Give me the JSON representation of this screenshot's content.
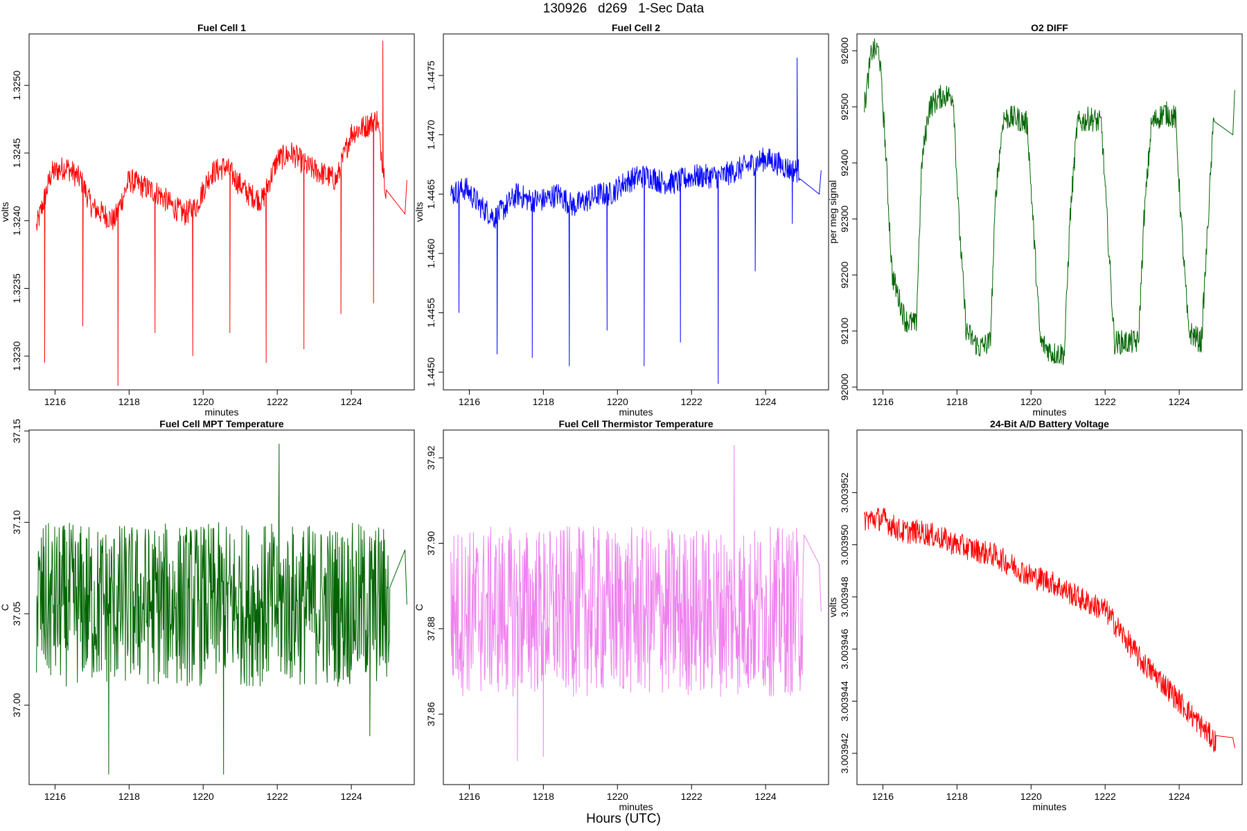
{
  "figure": {
    "title": "130926   d269   1-Sec Data",
    "footer": "Hours (UTC)"
  },
  "chart_data": [
    {
      "type": "line",
      "title": "Fuel Cell 1",
      "xlabel": "minutes",
      "ylabel": "volts",
      "color": "#ff0000",
      "xlim": [
        1215.3,
        1225.7
      ],
      "ylim": [
        1.32275,
        1.32538
      ],
      "x_ticks": [
        1216,
        1218,
        1220,
        1222,
        1224
      ],
      "y_ticks": [
        1.323,
        1.3235,
        1.324,
        1.3245,
        1.325
      ],
      "y_tick_labels": [
        "1.3230",
        "1.3235",
        "1.3240",
        "1.3245",
        "1.3250"
      ],
      "grid": false,
      "series": [
        {
          "x": [
            1215.5,
            1215.9,
            1216.3,
            1216.7,
            1217.0,
            1217.3,
            1217.6,
            1218.0,
            1218.4,
            1218.8,
            1219.2,
            1219.5,
            1219.8,
            1220.2,
            1220.6,
            1220.9,
            1221.2,
            1221.6,
            1222.0,
            1222.4,
            1222.8,
            1223.2,
            1223.6,
            1224.0,
            1224.4,
            1224.7,
            1224.95,
            1225.45,
            1225.5
          ],
          "y": [
            1.32395,
            1.32435,
            1.3244,
            1.3243,
            1.3241,
            1.32405,
            1.324,
            1.3243,
            1.32425,
            1.3242,
            1.3241,
            1.32405,
            1.3241,
            1.32435,
            1.3244,
            1.3243,
            1.3242,
            1.32415,
            1.32445,
            1.3245,
            1.3244,
            1.32435,
            1.3243,
            1.32465,
            1.3247,
            1.32475,
            1.3242,
            1.32405,
            1.3243
          ],
          "spikes": [
            [
              1215.72,
              1.32295
            ],
            [
              1216.75,
              1.32322
            ],
            [
              1217.7,
              1.32278
            ],
            [
              1218.7,
              1.32317
            ],
            [
              1219.72,
              1.323
            ],
            [
              1220.72,
              1.32317
            ],
            [
              1221.7,
              1.32295
            ],
            [
              1222.72,
              1.32305
            ],
            [
              1223.72,
              1.32331
            ],
            [
              1224.6,
              1.32339
            ]
          ],
          "peaks": [
            [
              1224.85,
              1.32533
            ]
          ]
        }
      ]
    },
    {
      "type": "line",
      "title": "Fuel Cell 2",
      "xlabel": "minutes",
      "ylabel": "volts",
      "color": "#0000ff",
      "xlim": [
        1215.3,
        1225.7
      ],
      "ylim": [
        1.44485,
        1.44785
      ],
      "x_ticks": [
        1216,
        1218,
        1220,
        1222,
        1224
      ],
      "y_ticks": [
        1.445,
        1.4455,
        1.446,
        1.4465,
        1.447,
        1.4475
      ],
      "y_tick_labels": [
        "1.4450",
        "1.4455",
        "1.4460",
        "1.4465",
        "1.4470",
        "1.4475"
      ],
      "grid": false,
      "series": [
        {
          "x": [
            1215.5,
            1215.9,
            1216.3,
            1216.7,
            1217.0,
            1217.3,
            1217.6,
            1218.0,
            1218.4,
            1218.8,
            1219.2,
            1219.5,
            1219.8,
            1220.2,
            1220.6,
            1220.9,
            1221.2,
            1221.6,
            1222.0,
            1222.4,
            1222.8,
            1223.2,
            1223.6,
            1224.0,
            1224.4,
            1224.7,
            1224.95,
            1225.45,
            1225.5
          ],
          "y": [
            1.4465,
            1.44655,
            1.4464,
            1.4463,
            1.4464,
            1.4465,
            1.44645,
            1.44645,
            1.4465,
            1.4464,
            1.44645,
            1.4465,
            1.4465,
            1.4466,
            1.44665,
            1.44665,
            1.4466,
            1.4466,
            1.44665,
            1.44665,
            1.44665,
            1.4467,
            1.44675,
            1.4468,
            1.44675,
            1.4467,
            1.4467,
            1.4465,
            1.4467
          ],
          "spikes": [
            [
              1215.72,
              1.4455
            ],
            [
              1216.75,
              1.44515
            ],
            [
              1217.7,
              1.44512
            ],
            [
              1218.7,
              1.44505
            ],
            [
              1219.72,
              1.44535
            ],
            [
              1220.72,
              1.44505
            ],
            [
              1221.7,
              1.44525
            ],
            [
              1222.72,
              1.4449
            ],
            [
              1223.72,
              1.44585
            ],
            [
              1224.72,
              1.44625
            ]
          ],
          "peaks": [
            [
              1224.85,
              1.44765
            ]
          ]
        }
      ]
    },
    {
      "type": "line",
      "title": "O2 DIFF",
      "xlabel": "minutes",
      "ylabel": "per meg signal",
      "color": "#006400",
      "xlim": [
        1215.3,
        1225.7
      ],
      "ylim": [
        91995,
        92630
      ],
      "x_ticks": [
        1216,
        1218,
        1220,
        1222,
        1224
      ],
      "y_ticks": [
        92000,
        92100,
        92200,
        92300,
        92400,
        92500,
        92600
      ],
      "y_tick_labels": [
        "92000",
        "92100",
        "92200",
        "92300",
        "92400",
        "92500",
        "92600"
      ],
      "grid": false,
      "series": [
        {
          "x": [
            1215.5,
            1215.7,
            1215.9,
            1216.05,
            1216.25,
            1216.6,
            1216.9,
            1217.05,
            1217.25,
            1217.6,
            1217.9,
            1218.05,
            1218.25,
            1218.6,
            1218.9,
            1219.05,
            1219.25,
            1219.6,
            1219.9,
            1220.05,
            1220.25,
            1220.6,
            1220.9,
            1221.05,
            1221.25,
            1221.6,
            1221.9,
            1222.05,
            1222.25,
            1222.6,
            1222.9,
            1223.05,
            1223.25,
            1223.6,
            1223.9,
            1224.05,
            1224.25,
            1224.6,
            1224.95,
            1225.45,
            1225.5
          ],
          "y": [
            92500,
            92600,
            92600,
            92450,
            92200,
            92120,
            92110,
            92400,
            92500,
            92520,
            92520,
            92300,
            92100,
            92070,
            92080,
            92350,
            92480,
            92480,
            92470,
            92300,
            92080,
            92060,
            92060,
            92300,
            92470,
            92480,
            92470,
            92300,
            92080,
            92080,
            92080,
            92300,
            92470,
            92490,
            92480,
            92300,
            92100,
            92080,
            92500,
            92450,
            92530
          ]
        }
      ]
    },
    {
      "type": "line",
      "title": "Fuel Cell MPT Temperature",
      "xlabel": "",
      "ylabel": "C",
      "color": "#006400",
      "xlim": [
        1215.3,
        1225.7
      ],
      "ylim": [
        36.9565,
        37.1505
      ],
      "x_ticks": [
        1216,
        1218,
        1220,
        1222,
        1224
      ],
      "y_ticks": [
        37.0,
        37.05,
        37.1,
        37.15
      ],
      "y_tick_labels": [
        "37.00",
        "37.05",
        "37.10",
        "37.15"
      ],
      "grid": false,
      "series": [
        {
          "x": [
            1215.5,
            1225.5
          ],
          "y": [
            37.055,
            37.055
          ],
          "spread": 0.045,
          "extremes": [
            [
              1217.45,
              36.962
            ],
            [
              1220.55,
              36.962
            ],
            [
              1222.05,
              37.143
            ],
            [
              1224.5,
              36.983
            ],
            [
              1225.45,
              37.085
            ]
          ]
        }
      ]
    },
    {
      "type": "line",
      "title": "Fuel Cell Thermistor Temperature",
      "xlabel": "minutes",
      "ylabel": "C",
      "color": "#ee82ee",
      "xlim": [
        1215.3,
        1225.7
      ],
      "ylim": [
        37.8435,
        37.9265
      ],
      "x_ticks": [
        1216,
        1218,
        1220,
        1222,
        1224
      ],
      "y_ticks": [
        37.86,
        37.88,
        37.9,
        37.92
      ],
      "y_tick_labels": [
        "37.86",
        "37.88",
        "37.90",
        "37.92"
      ],
      "grid": false,
      "series": [
        {
          "x": [
            1215.5,
            1225.5
          ],
          "y": [
            37.884,
            37.884
          ],
          "spread": 0.02,
          "extremes": [
            [
              1217.3,
              37.849
            ],
            [
              1218.0,
              37.85
            ],
            [
              1223.15,
              37.923
            ],
            [
              1225.45,
              37.895
            ]
          ]
        }
      ]
    },
    {
      "type": "line",
      "title": "24-Bit A/D Battery Voltage",
      "xlabel": "minutes",
      "ylabel": "volts",
      "color": "#ff0000",
      "xlim": [
        1215.3,
        1225.7
      ],
      "ylim": [
        3.0039408,
        3.0039544
      ],
      "x_ticks": [
        1216,
        1218,
        1220,
        1222,
        1224
      ],
      "y_ticks": [
        3.003942,
        3.003944,
        3.003946,
        3.003948,
        3.00395,
        3.003952
      ],
      "y_tick_labels": [
        "3.003942",
        "3.003944",
        "3.003946",
        "3.003948",
        "3.003950",
        "3.003952"
      ],
      "grid": false,
      "series": [
        {
          "x": [
            1215.5,
            1216.0,
            1216.5,
            1217.0,
            1217.5,
            1218.0,
            1218.5,
            1219.0,
            1219.5,
            1220.0,
            1220.5,
            1221.0,
            1221.5,
            1222.0,
            1222.5,
            1223.0,
            1223.5,
            1224.0,
            1224.5,
            1225.0,
            1225.45,
            1225.5
          ],
          "y": [
            3.003951,
            3.003951,
            3.0039505,
            3.0039505,
            3.0039503,
            3.00395,
            3.0039498,
            3.0039496,
            3.0039492,
            3.0039488,
            3.0039486,
            3.0039482,
            3.0039478,
            3.0039475,
            3.0039465,
            3.0039455,
            3.0039448,
            3.003944,
            3.0039432,
            3.0039424,
            3.0039426,
            3.0039422
          ]
        }
      ]
    }
  ]
}
